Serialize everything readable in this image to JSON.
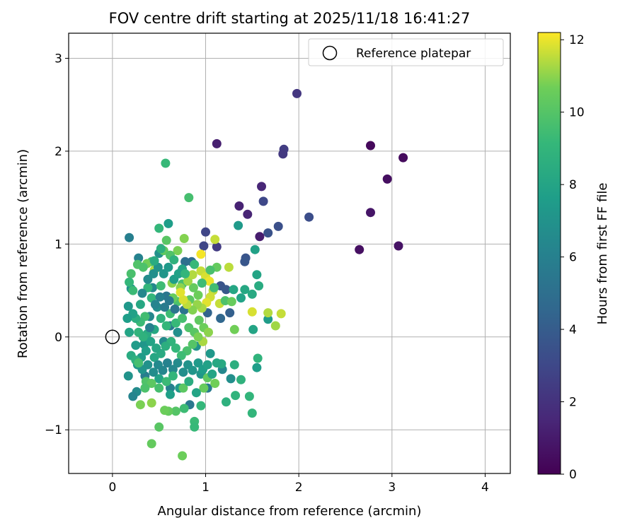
{
  "chart_data": {
    "type": "scatter",
    "title": "FOV centre drift starting at 2025/11/18 16:41:27",
    "xlabel": "Angular distance from reference (arcmin)",
    "ylabel": "Rotation from reference (arcmin)",
    "xlim": [
      -0.47,
      4.27
    ],
    "ylim": [
      -1.47,
      3.27
    ],
    "x_ticks": [
      0,
      1,
      2,
      3,
      4
    ],
    "y_ticks": [
      -1,
      0,
      1,
      2,
      3
    ],
    "x_tick_labels": [
      "0",
      "1",
      "2",
      "3",
      "4"
    ],
    "y_tick_labels": [
      "−1",
      "0",
      "1",
      "2",
      "3"
    ],
    "grid": true,
    "legend": {
      "placement": "top-right",
      "entries": [
        "Reference platepar"
      ]
    },
    "reference_point": {
      "x": 0,
      "y": 0,
      "label": "Reference platepar"
    },
    "colorbar": {
      "label": "Hours from first FF file",
      "range": [
        0,
        12.2
      ],
      "ticks": [
        0,
        2,
        4,
        6,
        8,
        10,
        12
      ],
      "tick_labels": [
        "0",
        "2",
        "4",
        "6",
        "8",
        "10",
        "12"
      ],
      "colormap": "viridis"
    },
    "points": [
      [
        1.12,
        2.08,
        1.2
      ],
      [
        1.98,
        2.62,
        2.2
      ],
      [
        2.77,
        2.06,
        0.3
      ],
      [
        3.12,
        1.93,
        0.4
      ],
      [
        1.84,
        2.02,
        2.5
      ],
      [
        1.83,
        1.97,
        2.3
      ],
      [
        2.95,
        1.7,
        0.5
      ],
      [
        1.6,
        1.62,
        1.5
      ],
      [
        1.36,
        1.41,
        1.3
      ],
      [
        1.62,
        1.46,
        3.0
      ],
      [
        1.45,
        1.32,
        1.4
      ],
      [
        2.77,
        1.34,
        0.8
      ],
      [
        2.11,
        1.29,
        3.3
      ],
      [
        1.78,
        1.19,
        3.4
      ],
      [
        1.67,
        1.12,
        3.5
      ],
      [
        1.58,
        1.08,
        1.1
      ],
      [
        2.65,
        0.94,
        0.6
      ],
      [
        3.07,
        0.98,
        0.7
      ],
      [
        1.0,
        1.13,
        2.9
      ],
      [
        1.12,
        0.97,
        2.4
      ],
      [
        0.98,
        0.98,
        2.9
      ],
      [
        1.43,
        0.85,
        3.6
      ],
      [
        1.42,
        0.81,
        3.7
      ],
      [
        1.16,
        0.55,
        3.6
      ],
      [
        1.22,
        0.51,
        3.8
      ],
      [
        1.26,
        0.26,
        4.2
      ],
      [
        1.02,
        0.26,
        4.4
      ],
      [
        1.16,
        0.2,
        4.6
      ],
      [
        0.85,
        0.81,
        4.8
      ],
      [
        0.78,
        0.81,
        5.0
      ],
      [
        0.77,
        0.29,
        5.2
      ],
      [
        0.58,
        0.44,
        5.4
      ],
      [
        0.62,
        0.12,
        5.6
      ],
      [
        0.18,
        1.07,
        5.9
      ],
      [
        0.28,
        0.85,
        6.1
      ],
      [
        0.4,
        0.22,
        6.3
      ],
      [
        0.43,
        0.53,
        6.5
      ],
      [
        0.48,
        0.32,
        6.7
      ],
      [
        0.5,
        0.9,
        6.9
      ],
      [
        0.2,
        0.52,
        7.1
      ],
      [
        0.17,
        0.33,
        7.3
      ],
      [
        0.25,
        -0.09,
        7.5
      ],
      [
        0.6,
        1.22,
        7.6
      ],
      [
        1.35,
        1.2,
        7.4
      ],
      [
        1.53,
        0.94,
        7.8
      ],
      [
        1.55,
        0.67,
        8.0
      ],
      [
        1.42,
        0.51,
        8.2
      ],
      [
        1.5,
        0.46,
        8.3
      ],
      [
        1.3,
        0.51,
        8.1
      ],
      [
        1.57,
        0.55,
        8.4
      ],
      [
        1.38,
        0.42,
        7.9
      ],
      [
        1.51,
        0.08,
        8.0
      ],
      [
        1.67,
        0.19,
        7.5
      ],
      [
        0.17,
        -0.42,
        7.0
      ],
      [
        0.26,
        -0.59,
        6.6
      ],
      [
        0.22,
        -0.64,
        6.2
      ],
      [
        0.35,
        -0.42,
        5.8
      ],
      [
        0.62,
        -0.55,
        6.0
      ],
      [
        0.83,
        -0.73,
        5.5
      ],
      [
        1.02,
        -0.55,
        5.7
      ],
      [
        1.18,
        -0.35,
        6.4
      ],
      [
        1.27,
        -0.45,
        6.8
      ],
      [
        0.95,
        -0.4,
        7.2
      ],
      [
        0.72,
        -0.55,
        7.4
      ],
      [
        0.62,
        -0.62,
        7.7
      ],
      [
        0.5,
        -0.45,
        7.9
      ],
      [
        0.45,
        -0.22,
        8.1
      ],
      [
        0.34,
        -0.08,
        7.2
      ],
      [
        0.55,
        -0.05,
        6.6
      ],
      [
        0.7,
        0.05,
        6.8
      ],
      [
        0.9,
        -0.1,
        7.0
      ],
      [
        1.05,
        -0.18,
        7.3
      ],
      [
        1.17,
        -0.29,
        8.3
      ],
      [
        1.31,
        -0.3,
        8.6
      ],
      [
        1.38,
        -0.46,
        8.8
      ],
      [
        1.22,
        -0.7,
        8.7
      ],
      [
        1.32,
        -0.63,
        8.9
      ],
      [
        1.47,
        -0.64,
        9.0
      ],
      [
        1.56,
        -0.23,
        8.9
      ],
      [
        1.55,
        -0.33,
        7.6
      ],
      [
        1.5,
        -0.82,
        9.0
      ],
      [
        0.95,
        -0.74,
        9.1
      ],
      [
        0.88,
        -0.91,
        9.3
      ],
      [
        0.88,
        -0.97,
        9.2
      ],
      [
        0.77,
        -0.77,
        9.4
      ],
      [
        0.68,
        -0.8,
        10.0
      ],
      [
        0.6,
        -0.8,
        10.4
      ],
      [
        0.56,
        -0.79,
        10.6
      ],
      [
        0.3,
        -0.73,
        10.8
      ],
      [
        0.42,
        -0.71,
        11.0
      ],
      [
        0.76,
        -0.55,
        10.2
      ],
      [
        0.98,
        -0.55,
        10.5
      ],
      [
        1.02,
        -0.44,
        10.3
      ],
      [
        1.1,
        -0.5,
        10.7
      ],
      [
        0.5,
        -0.97,
        10.1
      ],
      [
        0.42,
        -1.15,
        10.4
      ],
      [
        0.75,
        -1.28,
        10.6
      ],
      [
        0.57,
        1.87,
        9.2
      ],
      [
        0.82,
        1.5,
        9.6
      ],
      [
        0.5,
        1.17,
        9.1
      ],
      [
        0.58,
        1.04,
        10.1
      ],
      [
        0.77,
        1.06,
        10.9
      ],
      [
        0.7,
        0.93,
        10.8
      ],
      [
        0.55,
        0.93,
        10.3
      ],
      [
        0.62,
        0.88,
        9.9
      ],
      [
        0.42,
        0.81,
        9.5
      ],
      [
        0.37,
        0.79,
        10.7
      ],
      [
        0.27,
        0.78,
        9.9
      ],
      [
        0.33,
        0.75,
        9.8
      ],
      [
        0.2,
        0.68,
        9.7
      ],
      [
        0.45,
        0.72,
        11.4
      ],
      [
        0.52,
        0.55,
        9.4
      ],
      [
        0.38,
        0.53,
        9.0
      ],
      [
        0.22,
        0.5,
        9.3
      ],
      [
        0.18,
        0.59,
        9.1
      ],
      [
        0.75,
        0.57,
        9.6
      ],
      [
        0.87,
        0.53,
        10.4
      ],
      [
        0.92,
        0.45,
        10.6
      ],
      [
        0.83,
        0.4,
        10.2
      ],
      [
        0.7,
        0.38,
        9.8
      ],
      [
        0.65,
        0.42,
        10.5
      ],
      [
        0.73,
        0.53,
        11.0
      ],
      [
        0.81,
        0.6,
        11.2
      ],
      [
        0.86,
        0.67,
        11.4
      ],
      [
        0.95,
        0.71,
        11.6
      ],
      [
        1.0,
        0.65,
        11.8
      ],
      [
        1.04,
        0.6,
        12.0
      ],
      [
        1.08,
        0.5,
        11.5
      ],
      [
        1.05,
        0.43,
        11.7
      ],
      [
        1.01,
        0.37,
        11.9
      ],
      [
        0.96,
        0.31,
        11.3
      ],
      [
        0.91,
        0.35,
        11.1
      ],
      [
        0.86,
        0.29,
        10.9
      ],
      [
        0.8,
        0.35,
        11.5
      ],
      [
        0.76,
        0.4,
        11.8
      ],
      [
        0.73,
        0.48,
        11.9
      ],
      [
        0.64,
        0.58,
        11.0
      ],
      [
        0.95,
        0.89,
        12.1
      ],
      [
        1.1,
        1.05,
        11.6
      ],
      [
        1.12,
        0.75,
        10.4
      ],
      [
        1.05,
        0.72,
        9.7
      ],
      [
        1.09,
        0.53,
        9.5
      ],
      [
        1.15,
        0.36,
        11.6
      ],
      [
        1.21,
        0.39,
        9.8
      ],
      [
        1.25,
        0.75,
        11.5
      ],
      [
        1.28,
        0.38,
        10.5
      ],
      [
        1.31,
        0.08,
        10.7
      ],
      [
        1.5,
        0.27,
        11.8
      ],
      [
        1.67,
        0.26,
        11.4
      ],
      [
        1.75,
        0.12,
        11.2
      ],
      [
        1.81,
        0.25,
        11.6
      ],
      [
        0.75,
        0.73,
        8.0
      ],
      [
        0.42,
        0.42,
        9.0
      ],
      [
        0.35,
        0.22,
        9.5
      ],
      [
        0.3,
        0.16,
        9.3
      ],
      [
        0.25,
        0.2,
        8.6
      ],
      [
        0.28,
        0.05,
        8.9
      ],
      [
        0.37,
        0.03,
        8.4
      ],
      [
        0.45,
        0.08,
        8.2
      ],
      [
        0.52,
        0.2,
        8.8
      ],
      [
        0.58,
        0.12,
        9.1
      ],
      [
        0.62,
        0.25,
        9.4
      ],
      [
        0.68,
        0.15,
        9.2
      ],
      [
        0.75,
        0.2,
        9.6
      ],
      [
        0.82,
        0.1,
        9.9
      ],
      [
        0.88,
        0.05,
        10.1
      ],
      [
        0.93,
        0.18,
        10.3
      ],
      [
        0.98,
        0.1,
        10.6
      ],
      [
        1.03,
        0.05,
        11.0
      ],
      [
        0.97,
        -0.05,
        11.3
      ],
      [
        0.92,
        0.0,
        10.8
      ],
      [
        0.86,
        -0.08,
        10.0
      ],
      [
        0.8,
        -0.15,
        9.7
      ],
      [
        0.74,
        -0.2,
        9.4
      ],
      [
        0.68,
        -0.12,
        9.1
      ],
      [
        0.63,
        -0.05,
        8.9
      ],
      [
        0.57,
        -0.1,
        8.6
      ],
      [
        0.52,
        -0.18,
        8.3
      ],
      [
        0.47,
        -0.12,
        8.1
      ],
      [
        0.41,
        -0.05,
        7.9
      ],
      [
        0.36,
        -0.15,
        7.7
      ],
      [
        0.31,
        -0.22,
        7.5
      ],
      [
        0.27,
        -0.3,
        7.3
      ],
      [
        0.32,
        -0.35,
        7.1
      ],
      [
        0.38,
        -0.3,
        6.9
      ],
      [
        0.44,
        -0.38,
        6.7
      ],
      [
        0.49,
        -0.3,
        6.5
      ],
      [
        0.54,
        -0.36,
        6.3
      ],
      [
        0.59,
        -0.28,
        6.1
      ],
      [
        0.65,
        -0.35,
        6.4
      ],
      [
        0.7,
        -0.28,
        6.6
      ],
      [
        0.76,
        -0.38,
        6.8
      ],
      [
        0.81,
        -0.3,
        7.0
      ],
      [
        0.86,
        -0.36,
        7.2
      ],
      [
        0.92,
        -0.28,
        7.4
      ],
      [
        0.97,
        -0.35,
        7.6
      ],
      [
        1.02,
        -0.3,
        7.8
      ],
      [
        1.07,
        -0.4,
        8.0
      ],
      [
        1.12,
        -0.28,
        8.2
      ],
      [
        0.4,
        0.1,
        6.0
      ],
      [
        0.46,
        0.35,
        6.2
      ],
      [
        0.51,
        0.43,
        5.9
      ],
      [
        0.56,
        0.32,
        5.7
      ],
      [
        0.61,
        0.39,
        5.5
      ],
      [
        0.67,
        0.3,
        5.3
      ],
      [
        0.32,
        0.47,
        6.4
      ],
      [
        0.38,
        0.62,
        6.6
      ],
      [
        0.44,
        0.68,
        6.8
      ],
      [
        0.49,
        0.75,
        7.0
      ],
      [
        0.55,
        0.68,
        7.2
      ],
      [
        0.6,
        0.75,
        7.4
      ],
      [
        0.66,
        0.62,
        7.6
      ],
      [
        0.71,
        0.68,
        7.8
      ],
      [
        0.45,
        0.82,
        8.4
      ],
      [
        0.52,
        0.95,
        8.6
      ],
      [
        0.66,
        0.83,
        8.8
      ],
      [
        0.78,
        0.68,
        9.0
      ],
      [
        0.88,
        0.78,
        9.2
      ],
      [
        0.96,
        0.58,
        9.4
      ],
      [
        0.22,
        0.25,
        7.8
      ],
      [
        0.16,
        0.2,
        7.6
      ],
      [
        0.18,
        0.05,
        8.0
      ],
      [
        0.3,
        0.35,
        8.2
      ],
      [
        0.2,
        -0.2,
        8.4
      ],
      [
        0.25,
        -0.25,
        8.7
      ],
      [
        0.36,
        -0.48,
        9.9
      ],
      [
        0.42,
        -0.5,
        10.2
      ],
      [
        0.5,
        -0.55,
        9.6
      ],
      [
        0.58,
        -0.48,
        9.3
      ],
      [
        0.65,
        -0.42,
        9.0
      ],
      [
        0.82,
        -0.48,
        8.5
      ],
      [
        0.9,
        -0.6,
        8.0
      ],
      [
        0.35,
        -0.55,
        9.8
      ],
      [
        0.28,
        -0.28,
        9.6
      ],
      [
        0.33,
        0.0,
        8.8
      ]
    ]
  }
}
